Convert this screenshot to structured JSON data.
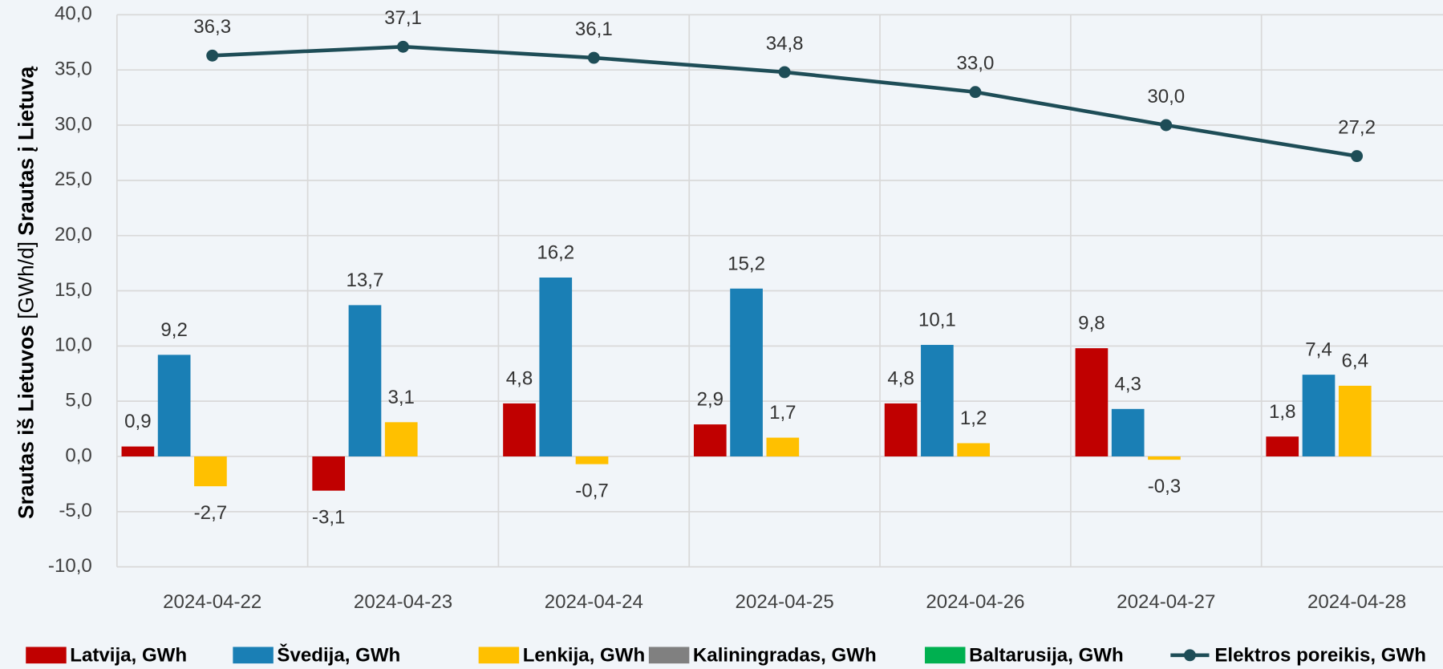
{
  "chart_data": {
    "type": "bar",
    "y_label": [
      "Srautas iš Lietuvos",
      "[GWh/d]",
      "Srautas į Lietuvą"
    ],
    "categories": [
      "2024-04-22",
      "2024-04-23",
      "2024-04-24",
      "2024-04-25",
      "2024-04-26",
      "2024-04-27",
      "2024-04-28"
    ],
    "series": [
      {
        "name": "Latvija, GWh",
        "color": "#c00000",
        "values": [
          0.9,
          -3.1,
          4.8,
          2.9,
          4.8,
          9.8,
          1.8
        ],
        "value_labels": [
          "0,9",
          "-3,1",
          "4,8",
          "2,9",
          "4,8",
          "9,8",
          "1,8"
        ]
      },
      {
        "name": "Švedija, GWh",
        "color": "#1a7fb5",
        "values": [
          9.2,
          13.7,
          16.2,
          15.2,
          10.1,
          4.3,
          7.4
        ],
        "value_labels": [
          "9,2",
          "13,7",
          "16,2",
          "15,2",
          "10,1",
          "4,3",
          "7,4"
        ]
      },
      {
        "name": "Lenkija, GWh",
        "color": "#ffc000",
        "values": [
          -2.7,
          3.1,
          -0.7,
          1.7,
          1.2,
          -0.3,
          6.4
        ],
        "value_labels": [
          "-2,7",
          "3,1",
          "-0,7",
          "1,7",
          "1,2",
          "-0,3",
          "6,4"
        ]
      },
      {
        "name": "Kaliningradas, GWh",
        "color": "#808080",
        "values": [
          null,
          null,
          null,
          null,
          null,
          null,
          null
        ]
      },
      {
        "name": "Baltarusija, GWh",
        "color": "#00b050",
        "values": [
          null,
          null,
          null,
          null,
          null,
          null,
          null
        ]
      },
      {
        "name": "Elektros poreikis, GWh",
        "color": "#1e4d57",
        "type": "line",
        "values": [
          36.3,
          37.1,
          36.1,
          34.8,
          33.0,
          30.0,
          27.2
        ],
        "value_labels": [
          "36,3",
          "37,1",
          "36,1",
          "34,8",
          "33,0",
          "30,0",
          "27,2"
        ]
      }
    ],
    "ylim": [
      -10,
      40
    ],
    "yticks": [
      {
        "value": -10,
        "label": "-10,0"
      },
      {
        "value": -5,
        "label": "-5,0"
      },
      {
        "value": 0,
        "label": "0,0"
      },
      {
        "value": 5,
        "label": "5,0"
      },
      {
        "value": 10,
        "label": "10,0"
      },
      {
        "value": 15,
        "label": "15,0"
      },
      {
        "value": 20,
        "label": "20,0"
      },
      {
        "value": 25,
        "label": "25,0"
      },
      {
        "value": 30,
        "label": "30,0"
      },
      {
        "value": 35,
        "label": "35,0"
      },
      {
        "value": 40,
        "label": "40,0"
      }
    ],
    "grid": true,
    "legend": "bottom"
  }
}
